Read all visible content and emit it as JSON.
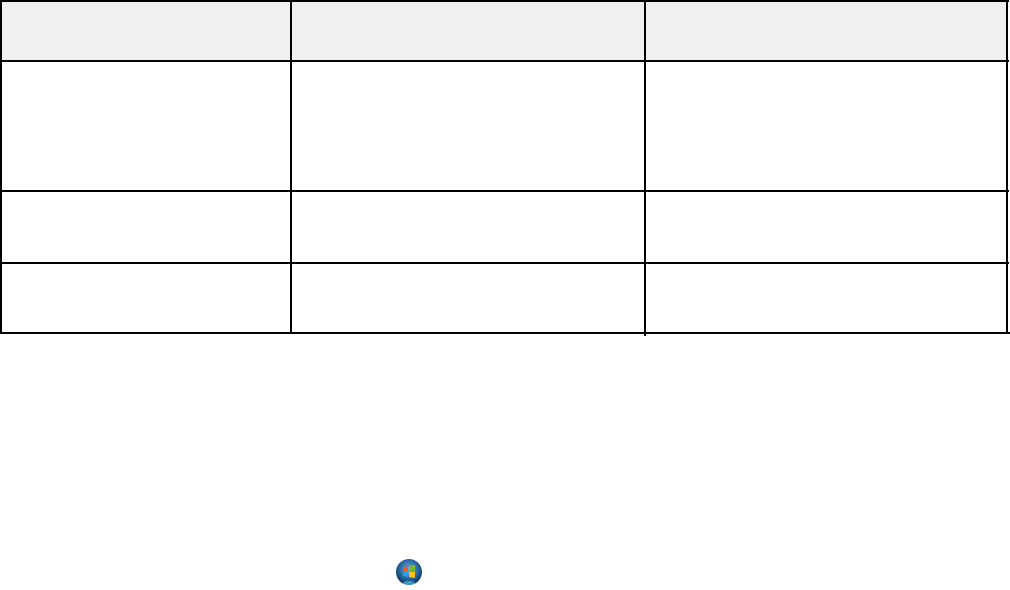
{
  "table": {
    "header": [
      "",
      "",
      ""
    ],
    "rows": [
      [
        "",
        "",
        ""
      ],
      [
        "",
        "",
        ""
      ],
      [
        "",
        "",
        ""
      ]
    ],
    "header_background": "#f0f0f0"
  },
  "icons": {
    "start_button": "windows-start-orb-icon"
  }
}
